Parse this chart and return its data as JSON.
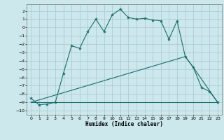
{
  "xlabel": "Humidex (Indice chaleur)",
  "background_color": "#cce8ec",
  "grid_color": "#aacdd4",
  "line_color": "#1a6b6b",
  "xlim": [
    -0.5,
    23.5
  ],
  "ylim": [
    -10.5,
    2.8
  ],
  "yticks": [
    2,
    1,
    0,
    -1,
    -2,
    -3,
    -4,
    -5,
    -6,
    -7,
    -8,
    -9,
    -10
  ],
  "xticks": [
    0,
    1,
    2,
    3,
    4,
    5,
    6,
    7,
    8,
    9,
    10,
    11,
    12,
    13,
    14,
    15,
    16,
    17,
    18,
    19,
    20,
    21,
    22,
    23
  ],
  "curve1_x": [
    0,
    1,
    2,
    3,
    4,
    5,
    6,
    7,
    8,
    9,
    10,
    11,
    12,
    13,
    14,
    15,
    16,
    17,
    18,
    19,
    20,
    21,
    22,
    23
  ],
  "curve1_y": [
    -8.5,
    -9.3,
    -9.2,
    -9.0,
    -5.5,
    -2.2,
    -2.5,
    -0.5,
    1.0,
    -0.5,
    1.5,
    2.2,
    1.2,
    1.0,
    1.1,
    0.9,
    0.8,
    -1.4,
    0.8,
    -3.5,
    -4.8,
    -7.2,
    -7.7,
    -9.0
  ],
  "curve2_x": [
    0,
    23
  ],
  "curve2_y": [
    -9.0,
    -9.0
  ],
  "curve3_x": [
    0,
    19,
    20,
    23
  ],
  "curve3_y": [
    -9.0,
    -3.5,
    -4.8,
    -9.0
  ]
}
